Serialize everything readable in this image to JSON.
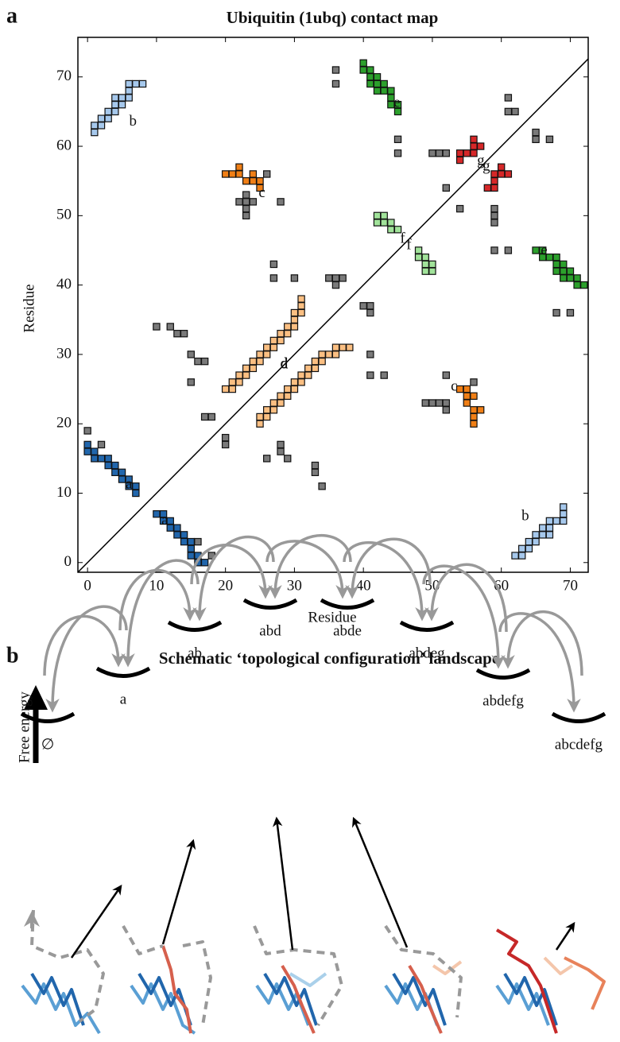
{
  "chart_data": {
    "type": "scatter",
    "panel_label": "a",
    "title": "Ubiquitin (1ubq) contact map",
    "xlabel": "Residue",
    "ylabel": "Residue",
    "xlim": [
      -1.4,
      72.6
    ],
    "ylim": [
      -1.4,
      75.7
    ],
    "xticks": [
      0,
      10,
      20,
      30,
      40,
      50,
      60,
      70
    ],
    "yticks": [
      0,
      10,
      20,
      30,
      40,
      50,
      60,
      70
    ],
    "series": [
      {
        "name": "a",
        "color": "#2166ac",
        "x": [
          0,
          0,
          1,
          1,
          2,
          3,
          3,
          4,
          4,
          5,
          5,
          6,
          6,
          7,
          7,
          17,
          16,
          16,
          15,
          15,
          15,
          14,
          14,
          13,
          13,
          12,
          12,
          11,
          11,
          10
        ],
        "values": [
          17,
          16,
          16,
          15,
          15,
          15,
          14,
          14,
          13,
          13,
          12,
          12,
          11,
          11,
          10,
          0,
          0,
          1,
          1,
          2,
          3,
          3,
          4,
          4,
          5,
          5,
          6,
          6,
          7,
          7
        ]
      },
      {
        "name": "b",
        "color": "#a6c8ec",
        "x": [
          1,
          1,
          2,
          2,
          3,
          3,
          4,
          4,
          4,
          5,
          5,
          6,
          6,
          6,
          7,
          8,
          62,
          63,
          63,
          64,
          64,
          65,
          65,
          66,
          67,
          66,
          67,
          67,
          68,
          69,
          69,
          69
        ],
        "values": [
          62,
          63,
          63,
          64,
          64,
          65,
          65,
          66,
          67,
          66,
          67,
          67,
          68,
          69,
          69,
          69,
          1,
          1,
          2,
          2,
          3,
          3,
          4,
          4,
          4,
          5,
          5,
          6,
          6,
          6,
          7,
          8
        ]
      },
      {
        "name": "c",
        "color": "#f07f16",
        "x": [
          20,
          21,
          22,
          22,
          23,
          24,
          24,
          25,
          25,
          56,
          56,
          56,
          57,
          55,
          55,
          56,
          55,
          54
        ],
        "values": [
          56,
          56,
          56,
          57,
          55,
          55,
          56,
          55,
          54,
          20,
          21,
          22,
          22,
          23,
          24,
          24,
          25,
          25
        ]
      },
      {
        "name": "d",
        "color": "#fbbf82",
        "x": [
          20,
          21,
          21,
          22,
          22,
          23,
          23,
          24,
          24,
          25,
          25,
          26,
          26,
          27,
          27,
          28,
          28,
          29,
          29,
          30,
          30,
          30,
          31,
          31,
          31,
          25,
          25,
          26,
          26,
          27,
          27,
          28,
          28,
          29,
          29,
          30,
          30,
          31,
          31,
          32,
          32,
          33,
          33,
          34,
          34,
          35,
          36,
          36,
          37,
          38
        ],
        "values": [
          25,
          25,
          26,
          26,
          27,
          27,
          28,
          28,
          29,
          29,
          30,
          30,
          31,
          31,
          32,
          32,
          33,
          33,
          34,
          34,
          35,
          36,
          36,
          37,
          38,
          20,
          21,
          21,
          22,
          22,
          23,
          23,
          24,
          24,
          25,
          25,
          26,
          26,
          27,
          27,
          28,
          28,
          29,
          29,
          30,
          30,
          30,
          31,
          31,
          31
        ]
      },
      {
        "name": "e",
        "color": "#2ca02c",
        "x": [
          40,
          40,
          41,
          41,
          42,
          42,
          43,
          43,
          44,
          44,
          44,
          45,
          45,
          41,
          42,
          72,
          71,
          71,
          70,
          70,
          69,
          69,
          68,
          68,
          67,
          66,
          66,
          65,
          69,
          68
        ],
        "values": [
          72,
          71,
          71,
          70,
          70,
          69,
          69,
          68,
          68,
          67,
          66,
          66,
          65,
          69,
          68,
          40,
          40,
          41,
          41,
          42,
          42,
          43,
          43,
          44,
          44,
          44,
          45,
          45,
          41,
          42
        ]
      },
      {
        "name": "f",
        "color": "#a1e39a",
        "x": [
          42,
          43,
          43,
          44,
          44,
          42,
          45,
          50,
          50,
          49,
          49,
          48,
          49,
          48
        ],
        "values": [
          50,
          50,
          49,
          49,
          48,
          49,
          48,
          42,
          43,
          43,
          44,
          44,
          42,
          45
        ]
      },
      {
        "name": "g",
        "color": "#d62728",
        "x": [
          54,
          54,
          55,
          56,
          56,
          57,
          56,
          59,
          58,
          59,
          59,
          60,
          60,
          61
        ],
        "values": [
          59,
          58,
          59,
          59,
          60,
          60,
          61,
          54,
          54,
          55,
          56,
          56,
          57,
          56
        ]
      },
      {
        "color": "#7a7a7a",
        "x": [
          0,
          2,
          16,
          18,
          10,
          12,
          13,
          14,
          15,
          16,
          17,
          15,
          17,
          18,
          20,
          20,
          26,
          28,
          28,
          29,
          33,
          33,
          34,
          27,
          27,
          30,
          35,
          36,
          37,
          36,
          40,
          41,
          41,
          41,
          41,
          43,
          49,
          50,
          51,
          52,
          52,
          52,
          56,
          23,
          22,
          23,
          24,
          23,
          23,
          26,
          28,
          36,
          36,
          45,
          45,
          50,
          51,
          52,
          52,
          54,
          59,
          59,
          59,
          59,
          61,
          61,
          61,
          62,
          65,
          65,
          67,
          68,
          70
        ],
        "values": [
          19,
          17,
          3,
          1,
          34,
          34,
          33,
          33,
          30,
          29,
          29,
          26,
          21,
          21,
          18,
          17,
          15,
          17,
          16,
          15,
          14,
          13,
          11,
          43,
          41,
          41,
          41,
          41,
          41,
          40,
          37,
          37,
          36,
          30,
          27,
          27,
          23,
          23,
          23,
          23,
          22,
          27,
          26,
          53,
          52,
          52,
          52,
          51,
          50,
          56,
          52,
          71,
          69,
          61,
          59,
          59,
          59,
          59,
          54,
          51,
          51,
          50,
          49,
          45,
          45,
          67,
          65,
          65,
          62,
          61,
          61,
          36,
          36
        ]
      }
    ]
  },
  "diagram": {
    "panel_label": "b",
    "title": "Schematic ‘topological configuration’ landscape",
    "axis_label": "Free energy",
    "nodes": [
      {
        "label": "∅"
      },
      {
        "label": "a"
      },
      {
        "label": "ab"
      },
      {
        "label": "abd"
      },
      {
        "label": "abde"
      },
      {
        "label": "abdeg"
      },
      {
        "label": "abdefg"
      },
      {
        "label": "abcdefg"
      }
    ]
  }
}
